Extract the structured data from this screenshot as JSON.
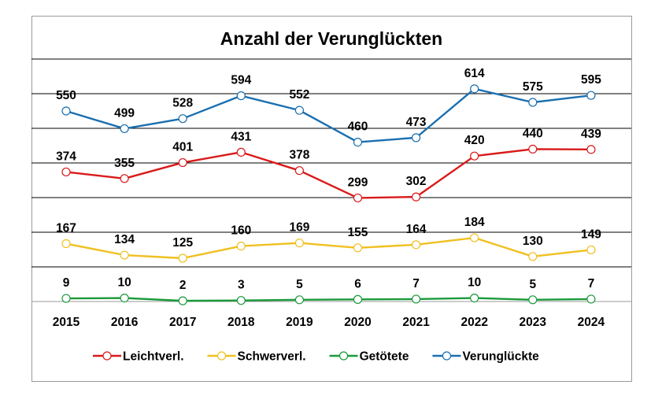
{
  "chart_data": {
    "type": "line",
    "title": "Anzahl der Verunglückten",
    "xlabel": "",
    "ylabel": "",
    "categories": [
      "2015",
      "2016",
      "2017",
      "2018",
      "2019",
      "2020",
      "2021",
      "2022",
      "2023",
      "2024"
    ],
    "ylim": [
      0,
      700
    ],
    "grid": true,
    "legend_position": "bottom",
    "series": [
      {
        "name": "Leichtverl.",
        "color": "#d91a1a",
        "values": [
          374,
          355,
          401,
          431,
          378,
          299,
          302,
          420,
          440,
          439
        ]
      },
      {
        "name": "Schwerverl.",
        "color": "#f0c020",
        "values": [
          167,
          134,
          125,
          160,
          169,
          155,
          164,
          184,
          130,
          149
        ]
      },
      {
        "name": "Getötete",
        "color": "#1a9a3a",
        "values": [
          9,
          10,
          2,
          3,
          5,
          6,
          7,
          10,
          5,
          7
        ]
      },
      {
        "name": "Verunglückte",
        "color": "#1a6fb0",
        "values": [
          550,
          499,
          528,
          594,
          552,
          460,
          473,
          614,
          575,
          595
        ]
      }
    ]
  }
}
